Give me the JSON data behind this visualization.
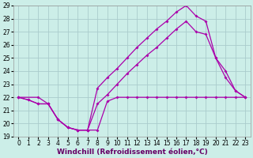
{
  "xlabel": "Windchill (Refroidissement éolien,°C)",
  "background_color": "#cceee8",
  "grid_color": "#aacccc",
  "line_color": "#aa00aa",
  "xlim": [
    -0.5,
    23.5
  ],
  "ylim": [
    19,
    29
  ],
  "xticks": [
    0,
    1,
    2,
    3,
    4,
    5,
    6,
    7,
    8,
    9,
    10,
    11,
    12,
    13,
    14,
    15,
    16,
    17,
    18,
    19,
    20,
    21,
    22,
    23
  ],
  "yticks": [
    19,
    20,
    21,
    22,
    23,
    24,
    25,
    26,
    27,
    28,
    29
  ],
  "line_bottom_x": [
    0,
    1,
    2,
    3,
    4,
    5,
    6,
    7,
    8,
    9,
    10,
    11,
    12,
    13,
    14,
    15,
    16,
    17,
    18,
    19,
    20,
    21,
    22,
    23
  ],
  "line_bottom_y": [
    22.0,
    21.8,
    21.5,
    21.5,
    20.3,
    19.7,
    19.5,
    19.5,
    19.5,
    21.7,
    22.0,
    22.0,
    22.0,
    22.0,
    22.0,
    22.0,
    22.0,
    22.0,
    22.0,
    22.0,
    22.0,
    22.0,
    22.0,
    22.0
  ],
  "line_mid_x": [
    0,
    1,
    2,
    3,
    4,
    5,
    6,
    7,
    8,
    9,
    10,
    11,
    12,
    13,
    14,
    15,
    16,
    17,
    18,
    19,
    20,
    21,
    22,
    23
  ],
  "line_mid_y": [
    22.0,
    21.8,
    21.5,
    21.5,
    20.3,
    19.7,
    19.5,
    19.5,
    21.5,
    22.2,
    23.0,
    23.8,
    24.5,
    25.2,
    25.8,
    26.5,
    27.2,
    27.8,
    27.0,
    26.8,
    25.0,
    24.0,
    22.5,
    22.0
  ],
  "line_top_x": [
    0,
    2,
    3,
    4,
    5,
    6,
    7,
    8,
    9,
    10,
    11,
    12,
    13,
    14,
    15,
    16,
    17,
    18,
    19,
    20,
    21,
    22,
    23
  ],
  "line_top_y": [
    22.0,
    22.0,
    21.5,
    20.3,
    19.7,
    19.5,
    19.5,
    22.7,
    23.5,
    24.2,
    25.0,
    25.8,
    26.5,
    27.2,
    27.8,
    28.5,
    29.0,
    28.2,
    27.8,
    25.0,
    23.5,
    22.5,
    22.0
  ],
  "font_size": 6.5,
  "tick_font_size": 5.5,
  "xlabel_color": "#660066",
  "marker": "D",
  "markersize": 2.0,
  "linewidth": 0.9
}
